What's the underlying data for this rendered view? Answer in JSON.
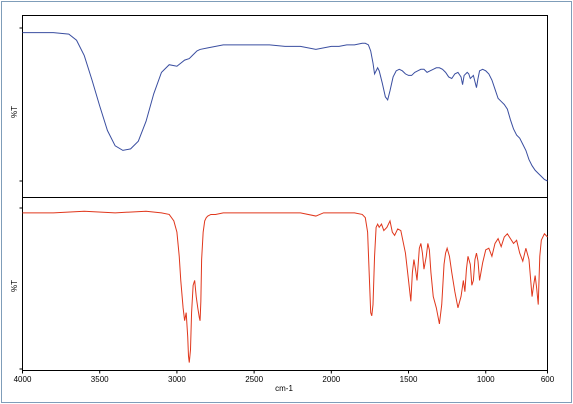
{
  "chart_data": {
    "type": "line",
    "xlabel": "cm-1",
    "x_ticks": [
      4000,
      3500,
      3000,
      2500,
      2000,
      1500,
      1000,
      600
    ],
    "xlim": [
      4000,
      600
    ],
    "x_reversed": true,
    "panels": [
      {
        "ylabel": "%T",
        "ylim": [
          0,
          100
        ],
        "series": [
          {
            "color": "#3a4ea0",
            "x": [
              4000,
              3800,
              3700,
              3650,
              3600,
              3550,
              3500,
              3450,
              3400,
              3350,
              3300,
              3250,
              3200,
              3150,
              3100,
              3050,
              3000,
              2950,
              2920,
              2900,
              2870,
              2850,
              2800,
              2700,
              2600,
              2500,
              2400,
              2300,
              2200,
              2100,
              2000,
              1950,
              1900,
              1850,
              1800,
              1780,
              1760,
              1745,
              1730,
              1720,
              1710,
              1700,
              1690,
              1670,
              1650,
              1635,
              1620,
              1600,
              1580,
              1560,
              1540,
              1520,
              1500,
              1480,
              1460,
              1440,
              1420,
              1400,
              1380,
              1360,
              1340,
              1320,
              1300,
              1280,
              1260,
              1240,
              1220,
              1200,
              1180,
              1160,
              1150,
              1140,
              1120,
              1110,
              1100,
              1080,
              1060,
              1050,
              1040,
              1020,
              1000,
              980,
              960,
              940,
              920,
              900,
              880,
              860,
              840,
              820,
              800,
              780,
              760,
              740,
              720,
              700,
              680,
              660,
              640,
              620,
              600
            ],
            "y": [
              97,
              97,
              96,
              92,
              82,
              66,
              49,
              33,
              23,
              20,
              21,
              26,
              39,
              57,
              71,
              76,
              75,
              79,
              80,
              82,
              85,
              86,
              87,
              89,
              89,
              89,
              89,
              88,
              88,
              86,
              88,
              88,
              89,
              89,
              90,
              90,
              89,
              85,
              77,
              70,
              72,
              74,
              72,
              64,
              55,
              53,
              59,
              68,
              72,
              73,
              72,
              70,
              69,
              69,
              71,
              72,
              73,
              73,
              71,
              72,
              73,
              74,
              74,
              73,
              71,
              68,
              67,
              70,
              71,
              68,
              63,
              69,
              71,
              70,
              67,
              69,
              61,
              67,
              72,
              73,
              72,
              70,
              66,
              60,
              54,
              52,
              50,
              47,
              40,
              34,
              30,
              28,
              24,
              20,
              14,
              10,
              7,
              5,
              3,
              1,
              0
            ]
          }
        ]
      },
      {
        "ylabel": "%T",
        "ylim": [
          0,
          100
        ],
        "series": [
          {
            "color": "#e0371c",
            "x": [
              4000,
              3800,
              3600,
              3400,
              3200,
              3100,
              3050,
              3020,
              3000,
              2985,
              2975,
              2960,
              2950,
              2940,
              2930,
              2925,
              2920,
              2912,
              2905,
              2895,
              2885,
              2875,
              2865,
              2855,
              2850,
              2845,
              2840,
              2830,
              2820,
              2810,
              2800,
              2780,
              2750,
              2700,
              2600,
              2400,
              2200,
              2100,
              2050,
              2000,
              1900,
              1850,
              1800,
              1780,
              1765,
              1755,
              1745,
              1738,
              1730,
              1720,
              1710,
              1700,
              1690,
              1675,
              1660,
              1640,
              1620,
              1605,
              1590,
              1570,
              1550,
              1520,
              1500,
              1485,
              1475,
              1465,
              1455,
              1445,
              1430,
              1420,
              1410,
              1400,
              1385,
              1375,
              1365,
              1355,
              1340,
              1320,
              1300,
              1285,
              1270,
              1260,
              1250,
              1235,
              1220,
              1200,
              1180,
              1160,
              1145,
              1135,
              1125,
              1115,
              1100,
              1090,
              1080,
              1070,
              1060,
              1050,
              1040,
              1020,
              1000,
              980,
              960,
              940,
              920,
              900,
              880,
              860,
              840,
              820,
              800,
              780,
              760,
              740,
              720,
              700,
              690,
              680,
              670,
              660,
              650,
              640,
              620,
              600
            ],
            "y": [
              97,
              97,
              98,
              97,
              98,
              97,
              96,
              92,
              85,
              70,
              55,
              38,
              30,
              35,
              20,
              8,
              4,
              12,
              35,
              52,
              55,
              45,
              38,
              32,
              30,
              42,
              68,
              85,
              92,
              94,
              95,
              96,
              96,
              97,
              97,
              97,
              97,
              95,
              97,
              97,
              97,
              97,
              96,
              94,
              85,
              60,
              35,
              33,
              40,
              70,
              88,
              90,
              88,
              90,
              86,
              88,
              92,
              85,
              83,
              87,
              86,
              72,
              55,
              42,
              60,
              68,
              62,
              55,
              75,
              78,
              72,
              62,
              70,
              78,
              74,
              60,
              45,
              38,
              28,
              40,
              65,
              72,
              75,
              70,
              60,
              48,
              38,
              45,
              55,
              48,
              62,
              70,
              65,
              52,
              55,
              68,
              72,
              67,
              55,
              66,
              74,
              75,
              70,
              78,
              81,
              76,
              82,
              84,
              81,
              78,
              80,
              72,
              67,
              75,
              68,
              45,
              52,
              58,
              50,
              40,
              70,
              80,
              84,
              82
            ]
          }
        ]
      }
    ],
    "grid": false,
    "legend": "none"
  }
}
